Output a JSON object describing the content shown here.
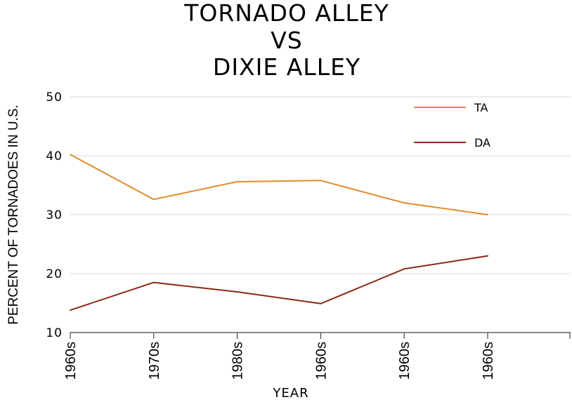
{
  "chart_data": {
    "type": "line",
    "title_lines": [
      "TORNADO ALLEY",
      "VS",
      "DIXIE ALLEY"
    ],
    "xlabel": "YEAR",
    "ylabel": "PERCENT OF TORNADOES IN U.S.",
    "categories": [
      "1960s",
      "1970s",
      "1980s",
      "1960s",
      "1960s",
      "1960s"
    ],
    "ylim": [
      10,
      50
    ],
    "yticks": [
      10,
      20,
      30,
      40,
      50
    ],
    "grid": true,
    "legend_position": "top-right",
    "series": [
      {
        "name": "TA",
        "color": "#e08c2e",
        "values": [
          40.2,
          32.6,
          35.6,
          35.8,
          32.0,
          30.0
        ]
      },
      {
        "name": "DA",
        "color": "#8b2a12",
        "values": [
          13.8,
          18.5,
          16.9,
          14.9,
          20.8,
          23.0
        ]
      }
    ]
  }
}
